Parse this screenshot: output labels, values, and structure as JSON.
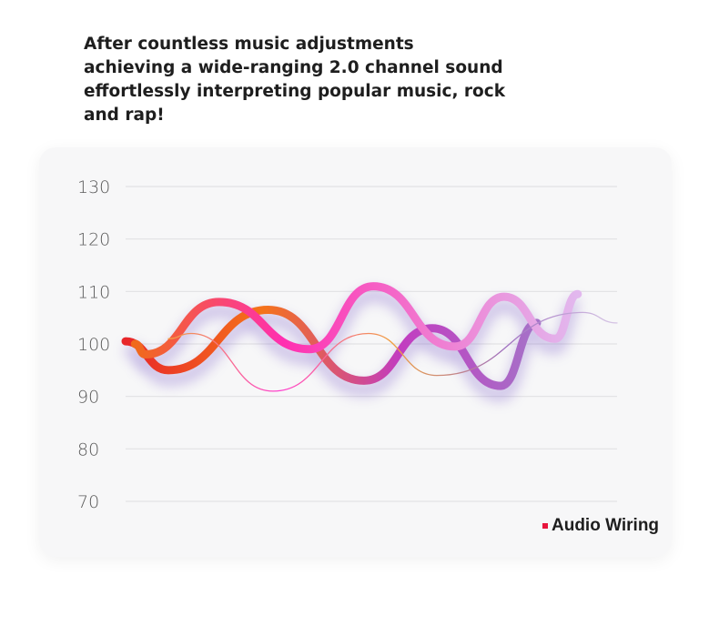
{
  "headline": {
    "lines": [
      "After countless music adjustments",
      "achieving a wide-ranging 2.0 channel sound",
      "effortlessly interpreting popular music, rock",
      "and rap!"
    ]
  },
  "chart_data": {
    "type": "line",
    "title": "",
    "xlabel": "",
    "ylabel": "",
    "ylim": [
      70,
      130
    ],
    "yticks": [
      "130",
      "120",
      "110",
      "100",
      "90",
      "80",
      "70"
    ],
    "grid": true,
    "legend": {
      "label": "Audio Wiring",
      "color": "#e8143c",
      "placement": "bottom-right"
    },
    "series": [
      {
        "points": [
          [
            0,
            100.5
          ],
          [
            8.7,
            95
          ],
          [
            29,
            106.5
          ],
          [
            48.5,
            93
          ],
          [
            62.4,
            103
          ],
          [
            76.3,
            92
          ],
          [
            83.7,
            104
          ]
        ],
        "colors": [
          "#e8262a",
          "#f5731a",
          "#c23cc0",
          "#a572c8"
        ]
      },
      {
        "points": [
          [
            1.9,
            100
          ],
          [
            4,
            98
          ],
          [
            19,
            108
          ],
          [
            37.4,
            99
          ],
          [
            50.4,
            111
          ],
          [
            67,
            99.5
          ],
          [
            77,
            109
          ],
          [
            87.4,
            101
          ],
          [
            92,
            109.5
          ]
        ],
        "colors": [
          "#f06a1a",
          "#ff2fb0",
          "#f07ad0",
          "#e2b8ee"
        ]
      },
      {
        "points": [
          [
            8.7,
            101
          ],
          [
            13.3,
            102
          ],
          [
            30,
            91
          ],
          [
            49.4,
            102
          ],
          [
            63.3,
            94
          ],
          [
            93,
            106
          ],
          [
            100,
            104
          ]
        ],
        "colors": [
          "#f0a040",
          "#ff40d0",
          "#f0a040",
          "#a070c0",
          "#d8c8e6"
        ]
      }
    ]
  }
}
